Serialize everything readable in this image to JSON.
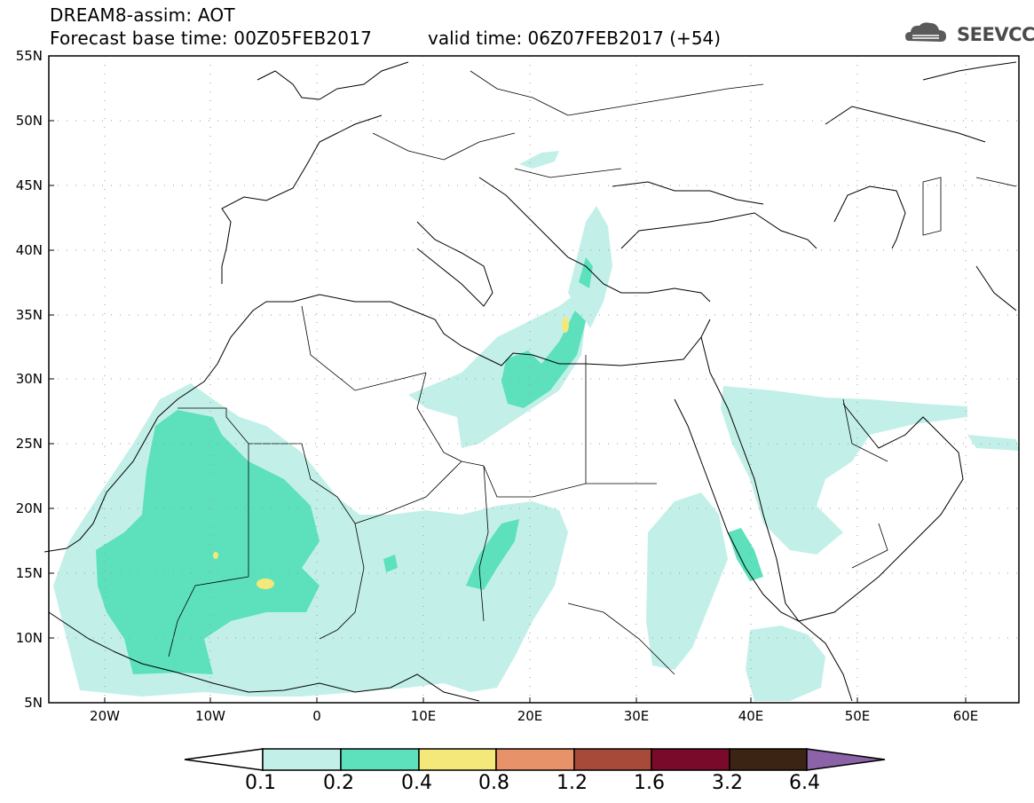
{
  "header": {
    "line1": "DREAM8-assim: AOT",
    "line2": "Forecast base time: 00Z05FEB2017",
    "valid": "valid time: 06Z07FEB2017 (+54)"
  },
  "logo": {
    "text": "SEEVCCC",
    "icon": "cloud-logo-icon"
  },
  "map": {
    "lat_labels": [
      "55N",
      "50N",
      "45N",
      "40N",
      "35N",
      "30N",
      "25N",
      "20N",
      "15N",
      "10N",
      "5N"
    ],
    "lon_labels": [
      "20W",
      "10W",
      "0",
      "10E",
      "20E",
      "30E",
      "40E",
      "50E",
      "60E"
    ],
    "extent": {
      "lon": [
        -25,
        65
      ],
      "lat": [
        5,
        55
      ]
    }
  },
  "legend": {
    "levels": [
      "0.1",
      "0.2",
      "0.4",
      "0.8",
      "1.2",
      "1.6",
      "3.2",
      "6.4"
    ],
    "colors": [
      "#ffffff",
      "#c2f0e8",
      "#5ce1bc",
      "#f5e87a",
      "#e8926a",
      "#a84a3a",
      "#7a0a2a",
      "#3c2414",
      "#8c62a8"
    ]
  }
}
